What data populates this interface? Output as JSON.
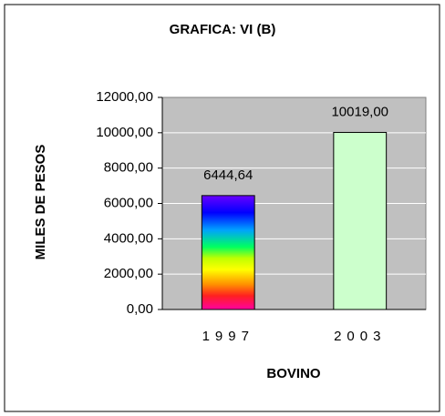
{
  "chart_data": {
    "type": "bar",
    "title": "GRAFICA: VI (B)",
    "y_label": "MILES DE PESOS",
    "x_label": "BOVINO",
    "categories": [
      "1997",
      "2003"
    ],
    "values": [
      6444.64,
      10019
    ],
    "value_labels": [
      "6444,64",
      "10019,00"
    ],
    "colors": [
      "url(#rainbow)",
      "#ccffcc"
    ],
    "ylim": [
      0,
      12000
    ],
    "yticks": [
      {
        "value": 0,
        "label": "0,00"
      },
      {
        "value": 2000,
        "label": "2000,00"
      },
      {
        "value": 4000,
        "label": "4000,00"
      },
      {
        "value": 6000,
        "label": "6000,00"
      },
      {
        "value": 8000,
        "label": "8000,00"
      },
      {
        "value": 10000,
        "label": "10000,00"
      },
      {
        "value": 12000,
        "label": "12000,00"
      }
    ],
    "grid": true
  }
}
